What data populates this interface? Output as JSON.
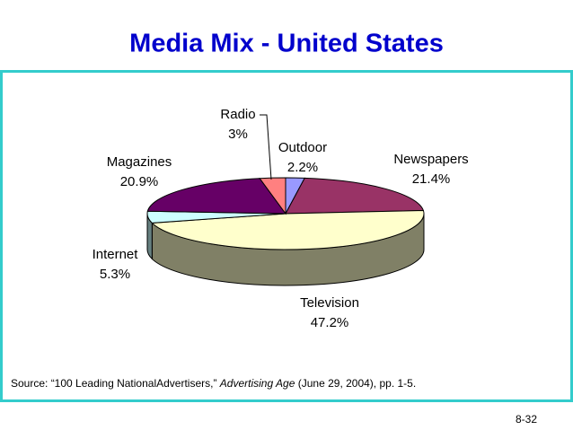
{
  "chart_data": {
    "type": "pie3d",
    "title": "Media Mix - United States",
    "series": [
      {
        "name": "Outdoor",
        "color": "#9999ff",
        "values": [
          2.2
        ],
        "value_labels": [
          "2.2%"
        ]
      },
      {
        "name": "Newspapers",
        "color": "#993366",
        "values": [
          21.4
        ],
        "value_labels": [
          "21.4%"
        ]
      },
      {
        "name": "Television",
        "color": "#ffffcc",
        "values": [
          47.2
        ],
        "value_labels": [
          "47.2%"
        ]
      },
      {
        "name": "Internet",
        "color": "#ccffff",
        "values": [
          5.3
        ],
        "value_labels": [
          "5.3%"
        ]
      },
      {
        "name": "Magazines",
        "color": "#660066",
        "values": [
          20.9
        ],
        "value_labels": [
          "20.9%"
        ]
      },
      {
        "name": "Radio",
        "color": "#ff8080",
        "values": [
          3
        ],
        "value_labels": [
          "3%"
        ]
      }
    ],
    "source": [
      "Source: “100 Leading NationalAdvertisers,” ",
      "Advertising Age",
      " (June 29, 2004), pp. 1-5."
    ],
    "page_number": "8-32"
  }
}
